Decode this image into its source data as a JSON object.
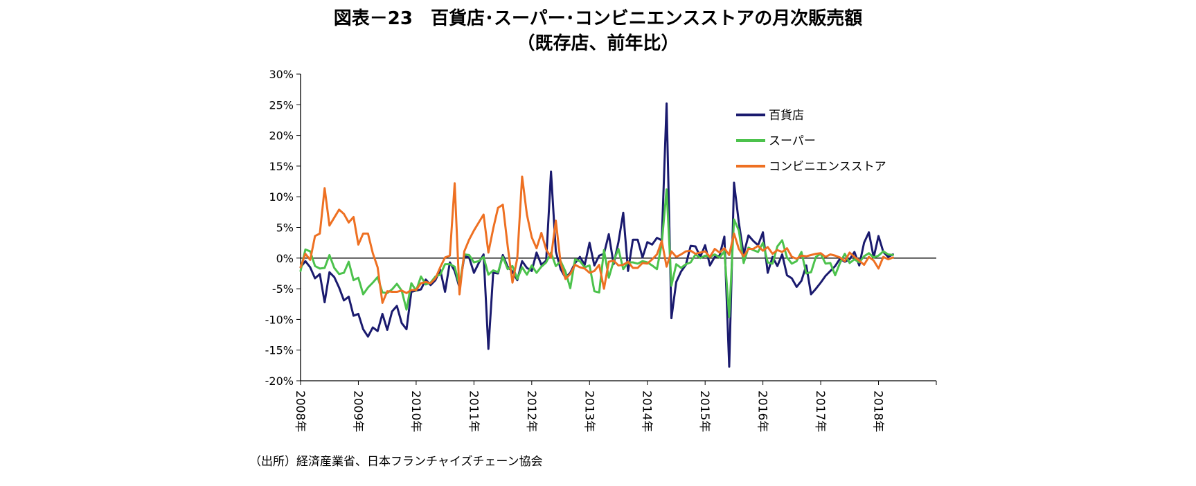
{
  "chart_data": {
    "type": "line",
    "title": "図表－23　百貨店･スーパー･コンビニエンスストアの月次販売額",
    "subtitle": "（既存店、前年比）",
    "xlabel": "",
    "ylabel": "",
    "ylim": [
      -20,
      30
    ],
    "yticks": [
      -20,
      -15,
      -10,
      -5,
      0,
      5,
      10,
      15,
      20,
      25,
      30
    ],
    "ytick_labels": [
      "-20%",
      "-15%",
      "-10%",
      "-5%",
      "0%",
      "5%",
      "10%",
      "15%",
      "20%",
      "25%",
      "30%"
    ],
    "xlim": [
      0,
      132
    ],
    "xtick_labels": [
      "2008年",
      "2009年",
      "2010年",
      "2011年",
      "2012年",
      "2013年",
      "2014年",
      "2015年",
      "2016年",
      "2017年",
      "2018年"
    ],
    "grid": false,
    "legend_position": "top-right",
    "x_start": "2008-01",
    "series": [
      {
        "name": "百貨店",
        "color": "#1a1a6e",
        "values": [
          -1.5,
          -0.5,
          -1.5,
          -3.3,
          -2.6,
          -7.2,
          -2.3,
          -3.1,
          -4.8,
          -6.9,
          -6.3,
          -9.4,
          -9.1,
          -11.6,
          -12.8,
          -11.3,
          -11.9,
          -9.1,
          -11.7,
          -8.7,
          -7.8,
          -10.6,
          -11.6,
          -5.5,
          -5.3,
          -5.1,
          -3.5,
          -4.4,
          -3.6,
          -1.9,
          -5.5,
          -0.7,
          -2.1,
          -4.8,
          0.3,
          0.1,
          -2.4,
          -0.8,
          0.6,
          -14.8,
          -2.4,
          -2.5,
          0.5,
          -1.4,
          -2.2,
          -3.6,
          -0.5,
          -1.6,
          -2.1,
          0.9,
          -1.1,
          -0.4,
          14.1,
          1.1,
          -1.8,
          -3.2,
          -2.4,
          -0.8,
          0.2,
          -1.1,
          2.5,
          -1.2,
          0.4,
          0.7,
          3.9,
          -1.0,
          2.6,
          7.4,
          -2.1,
          3.0,
          3.0,
          0.1,
          2.6,
          2.2,
          3.3,
          2.9,
          25.2,
          -9.8,
          -3.9,
          -2.2,
          -1.1,
          2.0,
          1.9,
          0.2,
          2.1,
          -1.2,
          0.2,
          0.4,
          3.5,
          -17.7,
          12.3,
          5.8,
          0.6,
          3.7,
          2.8,
          2.1,
          4.2,
          -2.4,
          0.2,
          -1.3,
          0.6,
          -2.8,
          -3.3,
          -4.7,
          -3.7,
          -1.2,
          -5.9,
          -5.0,
          -4.0,
          -2.9,
          -2.1,
          -1.3,
          -0.1,
          -0.6,
          -0.2,
          1.0,
          -1.2,
          2.5,
          4.2,
          0.1,
          3.6,
          1.0,
          0.2,
          0.6
        ]
      },
      {
        "name": "スーパー",
        "color": "#4cc24c",
        "values": [
          -2.1,
          1.4,
          1.1,
          -1.3,
          -1.7,
          -1.6,
          0.5,
          -1.6,
          -2.6,
          -2.4,
          -0.6,
          -3.6,
          -3.2,
          -5.9,
          -4.8,
          -4.0,
          -3.1,
          -5.6,
          -5.7,
          -5.1,
          -4.2,
          -5.3,
          -8.4,
          -4.1,
          -5.3,
          -3.0,
          -4.3,
          -4.0,
          -3.0,
          -2.7,
          -1.0,
          -1.0,
          -1.4,
          -4.5,
          0.6,
          0.5,
          -0.7,
          -0.5,
          0.2,
          -2.7,
          -2.0,
          -2.3,
          0.2,
          -1.8,
          -1.3,
          -3.4,
          -1.5,
          -2.7,
          -1.2,
          -2.4,
          -1.4,
          -0.7,
          0.9,
          -1.3,
          -0.5,
          -2.2,
          -4.9,
          -0.2,
          -0.5,
          -1.5,
          -1.2,
          -5.4,
          -5.6,
          1.3,
          -3.2,
          -0.5,
          1.5,
          -1.8,
          -0.7,
          -0.7,
          -0.9,
          -0.5,
          -0.7,
          -1.2,
          -1.8,
          2.4,
          11.2,
          -4.5,
          -1.0,
          -1.6,
          -1.0,
          -0.7,
          0.6,
          0.0,
          0.4,
          0.2,
          0.6,
          0.1,
          1.1,
          -9.6,
          6.3,
          4.5,
          -0.8,
          1.7,
          1.3,
          1.0,
          2.5,
          -0.7,
          -0.9,
          1.9,
          2.9,
          0.1,
          -0.9,
          -0.5,
          1.0,
          -2.5,
          -2.3,
          0.2,
          0.7,
          -0.9,
          -0.8,
          -2.8,
          -0.8,
          0.7,
          -0.8,
          -0.2,
          -0.7,
          0.3,
          0.8,
          0.1,
          0.4,
          1.1,
          0.6,
          0.5
        ]
      },
      {
        "name": "コンビニエンスストア",
        "color": "#ee7022",
        "values": [
          -1.5,
          0.7,
          -0.3,
          3.6,
          4.0,
          11.4,
          5.3,
          6.6,
          7.9,
          7.2,
          5.8,
          6.7,
          2.2,
          4.0,
          4.0,
          0.8,
          -1.5,
          -7.3,
          -5.4,
          -5.5,
          -5.5,
          -5.3,
          -5.7,
          -5.2,
          -5.2,
          -4.1,
          -3.9,
          -4.1,
          -3.3,
          -1.5,
          0.1,
          0.4,
          12.2,
          -5.9,
          1.1,
          3.0,
          4.5,
          5.8,
          7.1,
          0.9,
          4.8,
          8.2,
          8.7,
          2.0,
          -4.0,
          0.0,
          13.3,
          7.1,
          3.4,
          1.6,
          4.1,
          1.4,
          0.1,
          6.1,
          -0.8,
          -3.4,
          -2.6,
          -1.1,
          -1.5,
          -1.7,
          -2.4,
          -2.1,
          -1.1,
          -5.0,
          -0.6,
          -0.4,
          -1.2,
          -1.1,
          -0.6,
          -1.6,
          -1.6,
          -0.8,
          -0.9,
          -0.2,
          0.6,
          2.8,
          -1.4,
          1.1,
          0.2,
          0.6,
          1.1,
          1.2,
          0.7,
          0.9,
          1.1,
          0.2,
          1.5,
          0.9,
          1.6,
          0.5,
          4.0,
          1.5,
          0.3,
          1.5,
          1.5,
          2.0,
          1.2,
          1.8,
          0.7,
          1.3,
          1.0,
          1.6,
          0.2,
          -0.1,
          0.4,
          0.3,
          0.5,
          0.7,
          0.8,
          0.2,
          0.6,
          0.4,
          0.1,
          -0.5,
          0.9,
          0.2,
          -0.4,
          -1.1,
          0.2,
          -0.4,
          -1.7,
          0.2,
          -0.2,
          0.1
        ]
      }
    ]
  },
  "source_note": "（出所）経済産業省、日本フランチャイズチェーン協会"
}
